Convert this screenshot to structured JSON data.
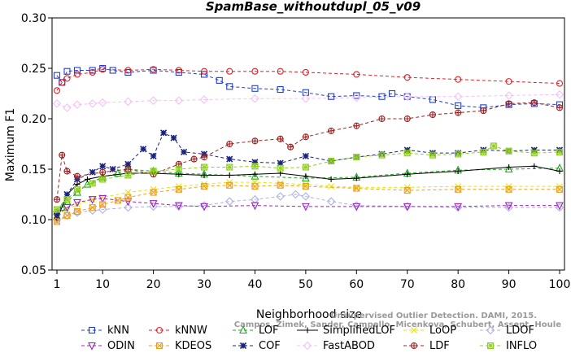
{
  "chart_data": {
    "type": "line",
    "title": "SpamBase_withoutdupl_05_v09",
    "xlabel": "Neighborhood size",
    "ylabel": "Maximum F1",
    "xlim": [
      1,
      100
    ],
    "ylim": [
      0.05,
      0.3
    ],
    "x_ticks": [
      1,
      10,
      20,
      30,
      40,
      50,
      60,
      70,
      80,
      90,
      100
    ],
    "y_ticks": [
      "0.05",
      "0.10",
      "0.15",
      "0.20",
      "0.25",
      "0.30"
    ],
    "legend_position": "bottom",
    "watermark": [
      "Unsupervised Outlier Detection. DAMI, 2015.",
      "Campos, Zimek, Sander, Campello, Micenkova, Schubert, Assent, Houle"
    ],
    "series": [
      {
        "name": "kNN",
        "color": "#1f3fd6",
        "marker": "square",
        "dash": "4,3",
        "x": [
          1,
          2,
          3,
          5,
          8,
          10,
          12,
          15,
          20,
          25,
          30,
          33,
          35,
          40,
          45,
          50,
          55,
          60,
          65,
          67,
          70,
          75,
          80,
          85,
          90,
          95,
          100
        ],
        "y": [
          0.243,
          0.236,
          0.247,
          0.248,
          0.248,
          0.25,
          0.248,
          0.246,
          0.248,
          0.246,
          0.244,
          0.238,
          0.232,
          0.23,
          0.229,
          0.226,
          0.222,
          0.223,
          0.222,
          0.225,
          0.222,
          0.219,
          0.213,
          0.211,
          0.214,
          0.215,
          0.214
        ]
      },
      {
        "name": "kNNW",
        "color": "#e0202a",
        "marker": "circle",
        "dash": "4,3",
        "x": [
          1,
          2,
          3,
          5,
          8,
          10,
          15,
          20,
          25,
          30,
          35,
          40,
          45,
          50,
          60,
          70,
          80,
          90,
          100
        ],
        "y": [
          0.228,
          0.236,
          0.24,
          0.244,
          0.246,
          0.249,
          0.248,
          0.249,
          0.248,
          0.247,
          0.247,
          0.247,
          0.247,
          0.246,
          0.244,
          0.241,
          0.239,
          0.237,
          0.235
        ]
      },
      {
        "name": "LOF",
        "color": "#1faa1f",
        "marker": "triangle",
        "dash": "4,3",
        "x": [
          1,
          2,
          3,
          5,
          7,
          10,
          13,
          15,
          20,
          25,
          30,
          40,
          50,
          60,
          70,
          80,
          90,
          100
        ],
        "y": [
          0.108,
          0.112,
          0.118,
          0.127,
          0.135,
          0.142,
          0.146,
          0.15,
          0.148,
          0.146,
          0.145,
          0.143,
          0.141,
          0.142,
          0.146,
          0.149,
          0.15,
          0.151
        ]
      },
      {
        "name": "SimplifiedLOF",
        "color": "#000000",
        "marker": "plus",
        "dash": "",
        "x": [
          1,
          3,
          5,
          7,
          10,
          15,
          20,
          25,
          30,
          35,
          40,
          45,
          50,
          55,
          60,
          70,
          80,
          90,
          95,
          100
        ],
        "y": [
          0.1,
          0.125,
          0.135,
          0.14,
          0.143,
          0.146,
          0.146,
          0.145,
          0.144,
          0.144,
          0.145,
          0.146,
          0.143,
          0.14,
          0.141,
          0.145,
          0.148,
          0.152,
          0.153,
          0.148
        ]
      },
      {
        "name": "LoOP",
        "color": "#e6e600",
        "marker": "x",
        "dash": "4,3",
        "x": [
          1,
          3,
          5,
          8,
          10,
          15,
          20,
          25,
          30,
          35,
          40,
          45,
          50,
          55,
          60,
          70,
          80,
          90,
          100
        ],
        "y": [
          0.105,
          0.11,
          0.115,
          0.12,
          0.122,
          0.127,
          0.13,
          0.133,
          0.135,
          0.137,
          0.137,
          0.136,
          0.135,
          0.133,
          0.132,
          0.132,
          0.133,
          0.133,
          0.133
        ]
      },
      {
        "name": "LDOF",
        "color": "#b0b0e6",
        "marker": "diamond",
        "dash": "4,3",
        "x": [
          1,
          3,
          5,
          8,
          10,
          15,
          20,
          25,
          30,
          35,
          40,
          45,
          48,
          50,
          55,
          60,
          70,
          80,
          90,
          100
        ],
        "y": [
          0.1,
          0.104,
          0.107,
          0.109,
          0.11,
          0.112,
          0.113,
          0.113,
          0.114,
          0.118,
          0.12,
          0.123,
          0.125,
          0.123,
          0.118,
          0.114,
          0.113,
          0.112,
          0.112,
          0.112
        ]
      },
      {
        "name": "ODIN",
        "color": "#a020c0",
        "marker": "triangle-down",
        "dash": "4,3",
        "x": [
          1,
          3,
          5,
          8,
          10,
          15,
          20,
          25,
          30,
          40,
          50,
          60,
          70,
          80,
          90,
          100
        ],
        "y": [
          0.105,
          0.112,
          0.117,
          0.12,
          0.121,
          0.118,
          0.116,
          0.114,
          0.113,
          0.114,
          0.113,
          0.113,
          0.113,
          0.113,
          0.114,
          0.114
        ]
      },
      {
        "name": "KDEOS",
        "color": "#f0a020",
        "marker": "box-x",
        "dash": "4,3",
        "x": [
          1,
          3,
          5,
          8,
          10,
          13,
          15,
          20,
          25,
          30,
          35,
          40,
          45,
          50,
          60,
          70,
          80,
          90,
          100
        ],
        "y": [
          0.098,
          0.104,
          0.108,
          0.112,
          0.115,
          0.119,
          0.122,
          0.127,
          0.13,
          0.133,
          0.134,
          0.133,
          0.134,
          0.133,
          0.131,
          0.129,
          0.13,
          0.13,
          0.13
        ]
      },
      {
        "name": "COF",
        "color": "#1a237e",
        "marker": "star",
        "dash": "4,3",
        "x": [
          1,
          3,
          5,
          8,
          10,
          12,
          15,
          18,
          20,
          22,
          24,
          26,
          30,
          35,
          40,
          45,
          50,
          55,
          60,
          65,
          70,
          75,
          80,
          85,
          90,
          95,
          100
        ],
        "y": [
          0.104,
          0.125,
          0.14,
          0.147,
          0.153,
          0.15,
          0.155,
          0.17,
          0.163,
          0.186,
          0.181,
          0.167,
          0.165,
          0.16,
          0.157,
          0.156,
          0.163,
          0.158,
          0.162,
          0.165,
          0.169,
          0.166,
          0.166,
          0.169,
          0.168,
          0.169,
          0.169
        ]
      },
      {
        "name": "FastABOD",
        "color": "#f5c0f5",
        "marker": "diamond",
        "dash": "4,3",
        "x": [
          1,
          3,
          5,
          8,
          10,
          15,
          20,
          25,
          30,
          40,
          50,
          60,
          70,
          80,
          90,
          100
        ],
        "y": [
          0.215,
          0.211,
          0.214,
          0.215,
          0.216,
          0.217,
          0.218,
          0.218,
          0.219,
          0.22,
          0.22,
          0.221,
          0.222,
          0.222,
          0.223,
          0.224
        ]
      },
      {
        "name": "LDF",
        "color": "#a02020",
        "marker": "circle-plus",
        "dash": "4,3",
        "x": [
          1,
          2,
          3,
          5,
          10,
          15,
          20,
          25,
          28,
          30,
          35,
          40,
          45,
          47,
          50,
          55,
          60,
          65,
          70,
          75,
          80,
          85,
          90,
          95,
          100
        ],
        "y": [
          0.12,
          0.164,
          0.148,
          0.143,
          0.147,
          0.15,
          0.145,
          0.155,
          0.16,
          0.162,
          0.175,
          0.178,
          0.18,
          0.172,
          0.182,
          0.188,
          0.193,
          0.2,
          0.2,
          0.204,
          0.206,
          0.208,
          0.215,
          0.216,
          0.211
        ]
      },
      {
        "name": "INFLO",
        "color": "#90d020",
        "marker": "box-star",
        "dash": "4,3",
        "x": [
          1,
          3,
          5,
          8,
          10,
          15,
          20,
          25,
          30,
          35,
          40,
          45,
          50,
          55,
          60,
          65,
          70,
          75,
          80,
          85,
          87,
          90,
          95,
          100
        ],
        "y": [
          0.11,
          0.12,
          0.13,
          0.136,
          0.14,
          0.144,
          0.148,
          0.15,
          0.152,
          0.152,
          0.153,
          0.151,
          0.152,
          0.158,
          0.162,
          0.164,
          0.166,
          0.164,
          0.165,
          0.167,
          0.173,
          0.168,
          0.166,
          0.167
        ]
      }
    ]
  }
}
